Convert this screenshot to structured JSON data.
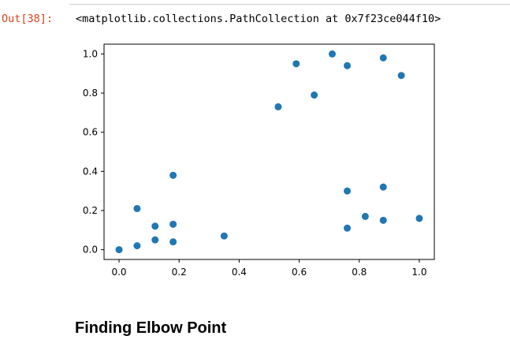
{
  "output": {
    "prompt": "Out[38]:",
    "text": "<matplotlib.collections.PathCollection at 0x7f23ce044f10>"
  },
  "heading": "Finding Elbow Point",
  "colors": {
    "marker": "#1f77b4",
    "prompt": "#d84315"
  },
  "chart_data": {
    "type": "scatter",
    "title": "",
    "xlabel": "",
    "ylabel": "",
    "xlim": [
      -0.05,
      1.05
    ],
    "ylim": [
      -0.05,
      1.05
    ],
    "xticks": [
      0.0,
      0.2,
      0.4,
      0.6,
      0.8,
      1.0
    ],
    "xtick_labels": [
      "0.0",
      "0.2",
      "0.4",
      "0.6",
      "0.8",
      "1.0"
    ],
    "yticks": [
      0.0,
      0.2,
      0.4,
      0.6,
      0.8,
      1.0
    ],
    "ytick_labels": [
      "0.0",
      "0.2",
      "0.4",
      "0.6",
      "0.8",
      "1.0"
    ],
    "grid": false,
    "x": [
      0.0,
      0.06,
      0.06,
      0.12,
      0.12,
      0.18,
      0.18,
      0.18,
      0.35,
      0.53,
      0.59,
      0.65,
      0.71,
      0.76,
      0.76,
      0.76,
      0.82,
      0.88,
      0.88,
      0.88,
      0.94,
      1.0
    ],
    "y": [
      0.0,
      0.02,
      0.21,
      0.05,
      0.12,
      0.04,
      0.13,
      0.38,
      0.07,
      0.73,
      0.95,
      0.79,
      1.0,
      0.94,
      0.3,
      0.11,
      0.17,
      0.98,
      0.32,
      0.15,
      0.89,
      0.16
    ]
  }
}
